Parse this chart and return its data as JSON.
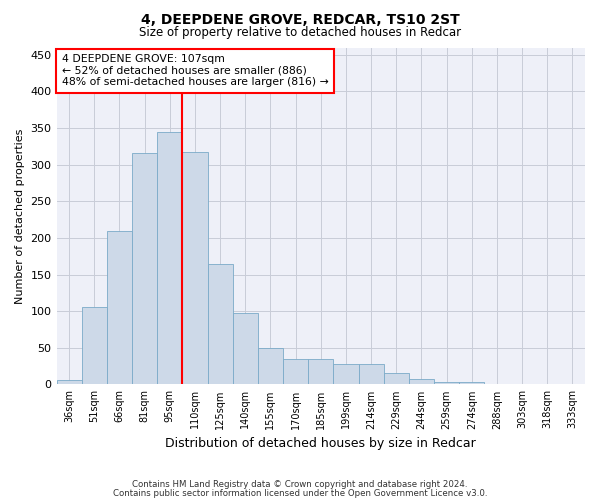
{
  "title": "4, DEEPDENE GROVE, REDCAR, TS10 2ST",
  "subtitle": "Size of property relative to detached houses in Redcar",
  "xlabel": "Distribution of detached houses by size in Redcar",
  "ylabel": "Number of detached properties",
  "bar_color": "#cdd9e8",
  "bar_edge_color": "#7aaac8",
  "grid_color": "#c8ccd8",
  "bg_color": "#eef0f8",
  "annotation_text": "4 DEEPDENE GROVE: 107sqm\n← 52% of detached houses are smaller (886)\n48% of semi-detached houses are larger (816) →",
  "annotation_box_color": "white",
  "annotation_box_edge": "red",
  "footnote1": "Contains HM Land Registry data © Crown copyright and database right 2024.",
  "footnote2": "Contains public sector information licensed under the Open Government Licence v3.0.",
  "categories": [
    "36sqm",
    "51sqm",
    "66sqm",
    "81sqm",
    "95sqm",
    "110sqm",
    "125sqm",
    "140sqm",
    "155sqm",
    "170sqm",
    "185sqm",
    "199sqm",
    "214sqm",
    "229sqm",
    "244sqm",
    "259sqm",
    "274sqm",
    "288sqm",
    "303sqm",
    "318sqm",
    "333sqm"
  ],
  "values": [
    6,
    106,
    210,
    316,
    344,
    318,
    165,
    97,
    50,
    35,
    35,
    28,
    28,
    15,
    8,
    4,
    4,
    1,
    0,
    0,
    0
  ],
  "ylim": [
    0,
    460
  ],
  "yticks": [
    0,
    50,
    100,
    150,
    200,
    250,
    300,
    350,
    400,
    450
  ],
  "red_line_index": 5
}
